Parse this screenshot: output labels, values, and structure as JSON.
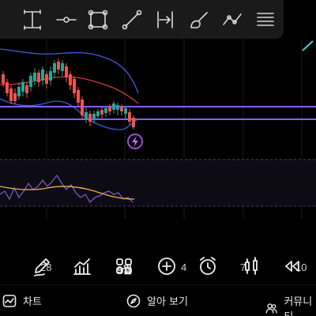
{
  "colors": {
    "background": "#000000",
    "toolbar_bg": "#1a1a1a",
    "candle_up": "#26a69a",
    "candle_down": "#ef5350",
    "bollinger_band": "#3f5bd8",
    "bollinger_basis": "#d03a3a",
    "horizontal_line": "#8a5cf6",
    "rsi_line": "#7e57c2",
    "rsi_signal": "#e6b24a",
    "alert_badge": "#9c4ad6"
  },
  "drawing_toolbar": {
    "tools": [
      {
        "icon": "text-cursor-icon"
      },
      {
        "icon": "horizontal-ray-icon"
      },
      {
        "icon": "rectangle-icon"
      },
      {
        "icon": "trend-line-icon"
      },
      {
        "icon": "date-range-icon"
      },
      {
        "icon": "brush-icon"
      },
      {
        "icon": "path-icon"
      },
      {
        "icon": "fib-retracement-icon"
      }
    ]
  },
  "x_axis": {
    "labels": [
      {
        "text": "28",
        "bold": false
      },
      {
        "text": "9월",
        "bold": true
      },
      {
        "text": "4",
        "bold": false
      },
      {
        "text": "7",
        "bold": false
      },
      {
        "text": "10",
        "bold": false
      }
    ]
  },
  "chart_toolbar": {
    "buttons": [
      {
        "icon": "pencil-icon"
      },
      {
        "icon": "indicators-icon"
      },
      {
        "icon": "layouts-grid-icon"
      },
      {
        "icon": "add-circle-icon"
      },
      {
        "icon": "alarm-clock-icon"
      },
      {
        "icon": "candlestick-icon"
      },
      {
        "icon": "rewind-icon"
      }
    ]
  },
  "bottom_nav": {
    "chart_label": "차트",
    "explore_label": "알아 보기",
    "community_label": "커뮤니티"
  }
}
